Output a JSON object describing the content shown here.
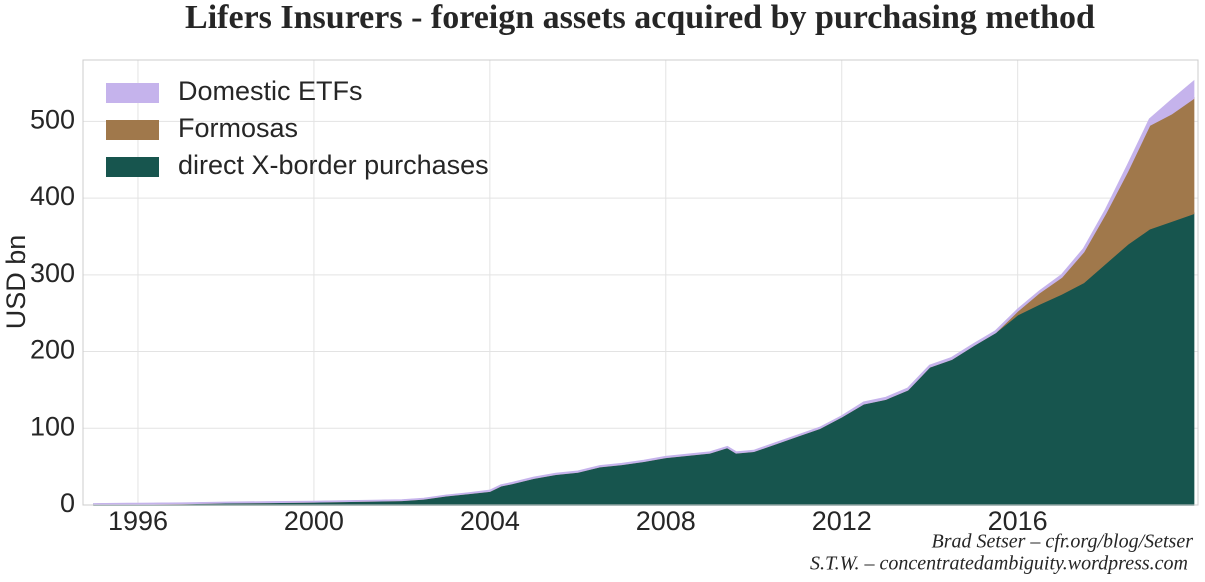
{
  "chart_data": {
    "type": "stacked_area",
    "title": "Lifers Insurers - foreign assets acquired by purchasing method",
    "y_label": "USD bn",
    "annotations": [
      "Brad Setser – cfr.org/blog/Setser",
      "S.T.W. – concentratedambiguity.wordpress.com"
    ],
    "x": [
      1995,
      1996,
      1997,
      1998,
      1999,
      2000,
      2001,
      2002,
      2002.5,
      2003,
      2003.5,
      2004,
      2004.25,
      2004.5,
      2005,
      2005.5,
      2006,
      2006.5,
      2007,
      2007.5,
      2008,
      2008.5,
      2009,
      2009.4,
      2009.6,
      2010,
      2010.5,
      2011,
      2011.5,
      2012,
      2012.5,
      2013,
      2013.5,
      2014,
      2014.5,
      2015,
      2015.5,
      2016,
      2016.5,
      2017,
      2017.5,
      2018,
      2018.5,
      2019,
      2019.5,
      2020
    ],
    "series": [
      {
        "name": "direct X-border purchases",
        "color": "#17554e",
        "values": [
          1,
          1.5,
          2,
          3,
          3.5,
          4,
          5,
          6,
          8,
          12,
          15,
          18,
          25,
          28,
          35,
          40,
          43,
          50,
          53,
          57,
          62,
          65,
          68,
          75,
          68,
          70,
          80,
          90,
          100,
          115,
          132,
          138,
          150,
          180,
          190,
          208,
          225,
          248,
          262,
          275,
          290,
          315,
          340,
          360,
          370,
          380
        ]
      },
      {
        "name": "Formosas",
        "color": "#a0784b",
        "values": [
          0,
          0,
          0,
          0,
          0,
          0,
          0,
          0,
          0,
          0,
          0,
          0,
          0,
          0,
          0,
          0,
          0,
          0,
          0,
          0,
          0,
          0,
          0,
          0,
          0,
          0,
          0,
          0,
          0,
          0,
          0,
          0,
          0,
          0,
          0,
          0,
          0,
          5,
          15,
          22,
          40,
          65,
          95,
          135,
          140,
          150
        ]
      },
      {
        "name": "Domestic ETFs",
        "color": "#c5b3ec",
        "values": [
          0.5,
          0.5,
          0.5,
          0.5,
          0.5,
          0.5,
          0.5,
          0.5,
          0.5,
          0.5,
          0.5,
          1,
          1,
          1,
          1,
          1,
          1,
          1,
          1,
          1,
          1,
          1,
          1,
          1,
          1,
          1,
          1,
          1,
          1,
          1,
          2,
          2,
          2,
          2,
          2,
          2,
          2,
          2,
          2,
          3,
          4,
          5,
          8,
          8,
          18,
          22
        ]
      }
    ],
    "xlim": [
      1994.75,
      2020.1
    ],
    "ylim": [
      0,
      580
    ],
    "xticks": [
      1996,
      2000,
      2004,
      2008,
      2012,
      2016
    ],
    "yticks": [
      0,
      100,
      200,
      300,
      400,
      500
    ],
    "grid": true,
    "legend": "upper left"
  }
}
